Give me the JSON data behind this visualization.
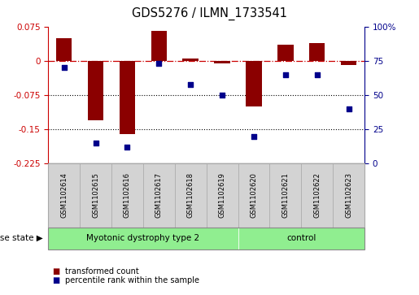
{
  "title": "GDS5276 / ILMN_1733541",
  "samples": [
    "GSM1102614",
    "GSM1102615",
    "GSM1102616",
    "GSM1102617",
    "GSM1102618",
    "GSM1102619",
    "GSM1102620",
    "GSM1102621",
    "GSM1102622",
    "GSM1102623"
  ],
  "red_bars": [
    0.05,
    -0.13,
    -0.16,
    0.065,
    0.005,
    -0.005,
    -0.1,
    0.035,
    0.038,
    -0.01
  ],
  "blue_dots_pct": [
    70,
    15,
    12,
    73,
    58,
    50,
    20,
    65,
    65,
    40
  ],
  "disease_groups": [
    {
      "label": "Myotonic dystrophy type 2",
      "start": 0,
      "end": 6
    },
    {
      "label": "control",
      "start": 6,
      "end": 10
    }
  ],
  "bar_color": "#8B0000",
  "dot_color": "#00008B",
  "left_ylim": [
    -0.225,
    0.075
  ],
  "left_yticks": [
    0.075,
    0,
    -0.075,
    -0.15,
    -0.225
  ],
  "right_ylim": [
    0,
    100
  ],
  "right_yticks": [
    100,
    75,
    50,
    25,
    0
  ],
  "hline_color": "#CC0000",
  "dotline_color": "black",
  "legend_items": [
    "transformed count",
    "percentile rank within the sample"
  ],
  "disease_state_label": "disease state",
  "bar_width": 0.5,
  "group_color": "#90EE90",
  "label_box_color": "#D3D3D3"
}
